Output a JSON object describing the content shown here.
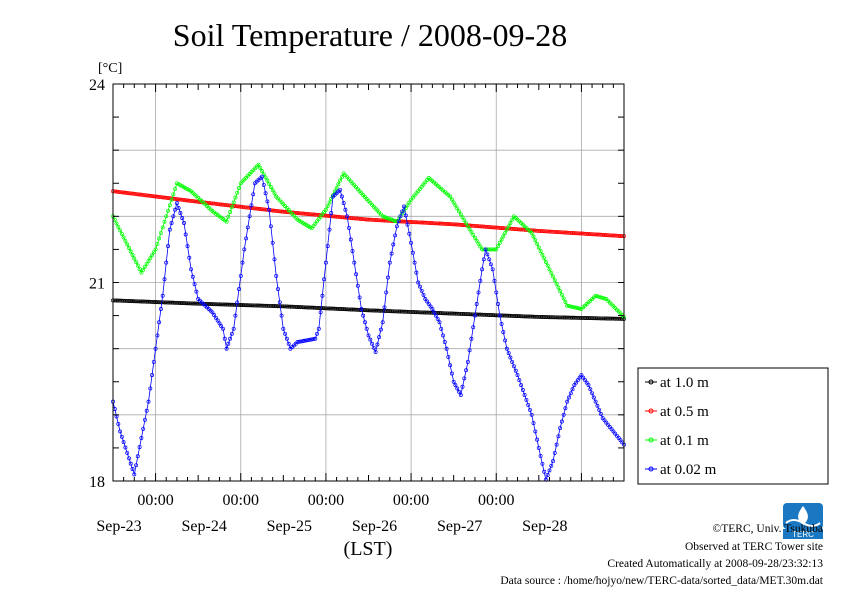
{
  "chart_data": {
    "type": "line",
    "title": "Soil Temperature / 2008-09-28",
    "ylabel": "[°C]",
    "xlabel": "(LST)",
    "ylim": [
      18,
      24
    ],
    "yticks": [
      "24",
      "21",
      "18"
    ],
    "xticks": [
      "00:00",
      "00:00",
      "00:00",
      "00:00",
      "00:00"
    ],
    "date_labels": [
      "Sep-23",
      "Sep-24",
      "Sep-25",
      "Sep-26",
      "Sep-27",
      "Sep-28"
    ],
    "x_unit": "hours since 2008-09-22 00:00 LST",
    "xlim": [
      12,
      156
    ],
    "grid": true,
    "legend_position": "right",
    "series": [
      {
        "name": "at 1.0 m",
        "color": "#000000",
        "points": [
          [
            12,
            20.73
          ],
          [
            36,
            20.68
          ],
          [
            60,
            20.64
          ],
          [
            84,
            20.58
          ],
          [
            108,
            20.53
          ],
          [
            132,
            20.48
          ],
          [
            156,
            20.45
          ]
        ]
      },
      {
        "name": "at 0.5 m",
        "color": "#ff0000",
        "points": [
          [
            12,
            22.38
          ],
          [
            36,
            22.22
          ],
          [
            60,
            22.07
          ],
          [
            84,
            21.95
          ],
          [
            108,
            21.88
          ],
          [
            132,
            21.78
          ],
          [
            156,
            21.7
          ]
        ]
      },
      {
        "name": "at 0.1 m",
        "color": "#00ff00",
        "points": [
          [
            12,
            22.0
          ],
          [
            20,
            21.15
          ],
          [
            24,
            21.5
          ],
          [
            30,
            22.5
          ],
          [
            34,
            22.38
          ],
          [
            40,
            22.08
          ],
          [
            44,
            21.92
          ],
          [
            48,
            22.5
          ],
          [
            53,
            22.78
          ],
          [
            58,
            22.3
          ],
          [
            64,
            21.95
          ],
          [
            68,
            21.82
          ],
          [
            72,
            22.1
          ],
          [
            77,
            22.65
          ],
          [
            82,
            22.35
          ],
          [
            88,
            22.0
          ],
          [
            92,
            21.92
          ],
          [
            96,
            22.25
          ],
          [
            101,
            22.58
          ],
          [
            107,
            22.3
          ],
          [
            112,
            21.85
          ],
          [
            116,
            21.5
          ],
          [
            120,
            21.5
          ],
          [
            125,
            22.0
          ],
          [
            130,
            21.75
          ],
          [
            135,
            21.2
          ],
          [
            140,
            20.65
          ],
          [
            144,
            20.6
          ],
          [
            148,
            20.8
          ],
          [
            151,
            20.75
          ],
          [
            156,
            20.48
          ]
        ]
      },
      {
        "name": "at 0.02 m",
        "color": "#0000ff",
        "points": [
          [
            12,
            19.2
          ],
          [
            14,
            18.75
          ],
          [
            18,
            18.1
          ],
          [
            22,
            19.2
          ],
          [
            26,
            20.8
          ],
          [
            28,
            21.8
          ],
          [
            30,
            22.2
          ],
          [
            32,
            21.9
          ],
          [
            34,
            21.2
          ],
          [
            36,
            20.75
          ],
          [
            40,
            20.55
          ],
          [
            43,
            20.3
          ],
          [
            44,
            20.0
          ],
          [
            46,
            20.3
          ],
          [
            49,
            21.5
          ],
          [
            52,
            22.5
          ],
          [
            54,
            22.6
          ],
          [
            56,
            22.1
          ],
          [
            58,
            21.1
          ],
          [
            60,
            20.3
          ],
          [
            62,
            20.0
          ],
          [
            64,
            20.1
          ],
          [
            69,
            20.15
          ],
          [
            70,
            20.3
          ],
          [
            72,
            21.3
          ],
          [
            74,
            22.3
          ],
          [
            76,
            22.4
          ],
          [
            78,
            22.0
          ],
          [
            80,
            21.3
          ],
          [
            82,
            20.6
          ],
          [
            84,
            20.2
          ],
          [
            86,
            19.95
          ],
          [
            88,
            20.4
          ],
          [
            90,
            21.3
          ],
          [
            92,
            21.85
          ],
          [
            94,
            22.15
          ],
          [
            96,
            21.6
          ],
          [
            98,
            21.0
          ],
          [
            100,
            20.75
          ],
          [
            102,
            20.6
          ],
          [
            104,
            20.4
          ],
          [
            106,
            20.0
          ],
          [
            108,
            19.5
          ],
          [
            110,
            19.3
          ],
          [
            112,
            19.8
          ],
          [
            114,
            20.5
          ],
          [
            116,
            21.2
          ],
          [
            117,
            21.5
          ],
          [
            119,
            21.2
          ],
          [
            121,
            20.5
          ],
          [
            123,
            20.0
          ],
          [
            126,
            19.6
          ],
          [
            128,
            19.3
          ],
          [
            130,
            19.0
          ],
          [
            132,
            18.5
          ],
          [
            134,
            18.02
          ],
          [
            136,
            18.3
          ],
          [
            138,
            18.8
          ],
          [
            140,
            19.2
          ],
          [
            142,
            19.45
          ],
          [
            144,
            19.6
          ],
          [
            146,
            19.45
          ],
          [
            148,
            19.2
          ],
          [
            150,
            18.95
          ],
          [
            153,
            18.75
          ],
          [
            156,
            18.55
          ]
        ]
      }
    ]
  },
  "credits": {
    "copyright": "©TERC, Univ. Tsukuba",
    "site": "Observed at TERC Tower site",
    "created": "Created Automatically at 2008-09-28/23:32:13",
    "source": "Data source : /home/hojyo/new/TERC-data/sorted_data/MET.30m.dat",
    "logo_text": "TERC"
  }
}
